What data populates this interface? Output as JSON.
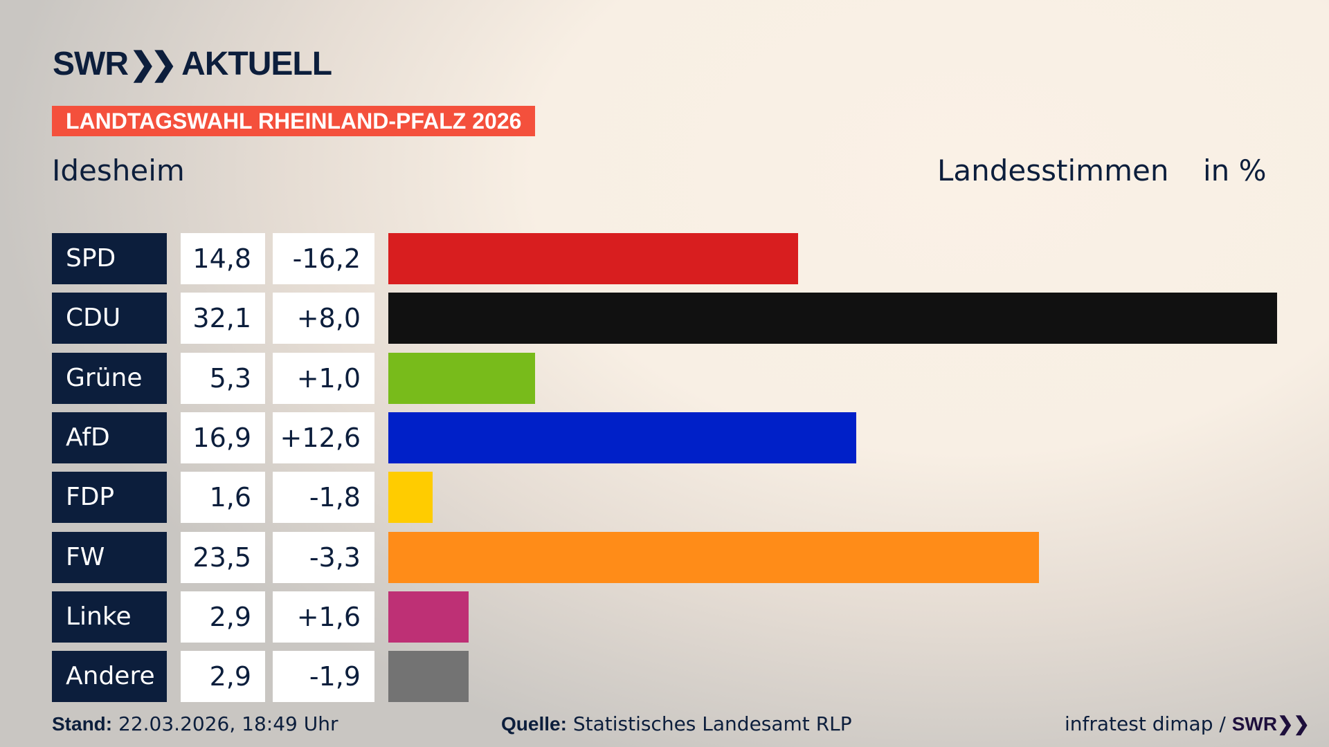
{
  "brand": {
    "logo_text": "SWR",
    "logo_suffix": "AKTUELL"
  },
  "banner": "LANDTAGSWAHL RHEINLAND-PFALZ 2026",
  "place": "Idesheim",
  "header": {
    "measure": "Landesstimmen",
    "unit": "in %"
  },
  "chart_data": {
    "type": "bar",
    "orientation": "horizontal",
    "categories": [
      "SPD",
      "CDU",
      "Grüne",
      "AfD",
      "FDP",
      "FW",
      "Linke",
      "Andere"
    ],
    "values": [
      14.8,
      32.1,
      5.3,
      16.9,
      1.6,
      23.5,
      2.9,
      2.9
    ],
    "value_labels": [
      "14,8",
      "32,1",
      "5,3",
      "16,9",
      "1,6",
      "23,5",
      "2,9",
      "2,9"
    ],
    "diff_labels": [
      "-16,2",
      "+8,0",
      "+1,0",
      "+12,6",
      "-1,8",
      "-3,3",
      "+1,6",
      "-1,9"
    ],
    "diffs": [
      -16.2,
      8.0,
      1.0,
      12.6,
      -1.8,
      -3.3,
      1.6,
      -1.9
    ],
    "colors": [
      "#d81e1f",
      "#111111",
      "#78bb1b",
      "#0020c8",
      "#ffcc00",
      "#ff8c18",
      "#be3075",
      "#737373"
    ],
    "xlim": [
      0,
      32.1
    ]
  },
  "footer": {
    "stand_label": "Stand:",
    "stand_value": "22.03.2026, 18:49 Uhr",
    "source_label": "Quelle:",
    "source_value": "Statistisches Landesamt RLP",
    "credit": "infratest dimap /",
    "credit_brand": "SWR"
  }
}
